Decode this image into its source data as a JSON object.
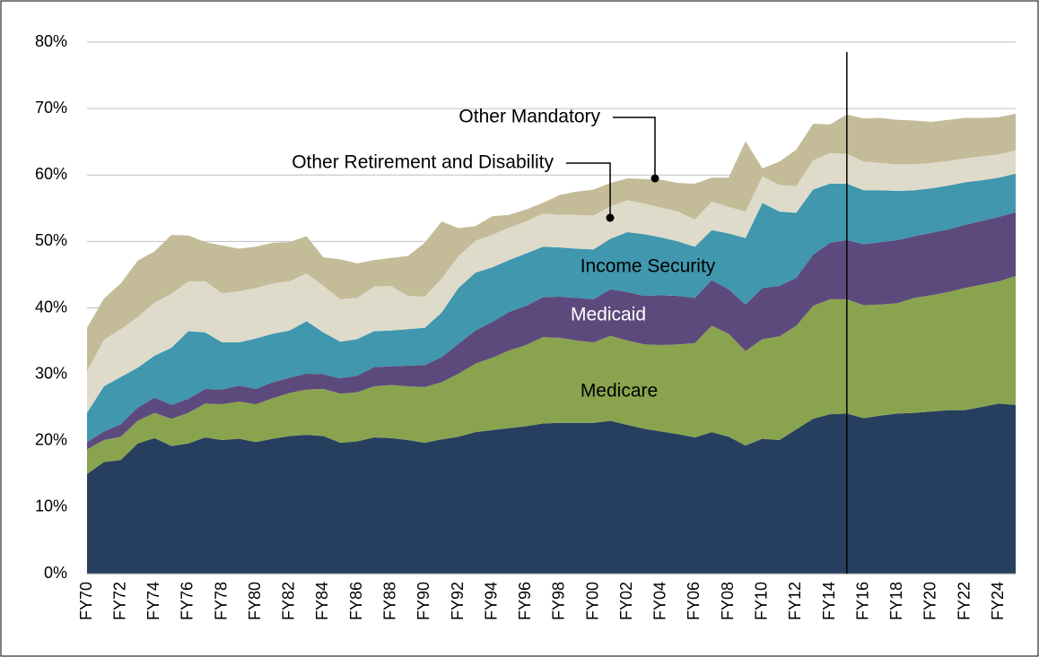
{
  "chart_data": {
    "type": "stacked_area",
    "categories": [
      "FY70",
      null,
      "FY72",
      null,
      "FY74",
      null,
      "FY76",
      null,
      "FY78",
      null,
      "FY80",
      null,
      "FY82",
      null,
      "FY84",
      null,
      "FY86",
      null,
      "FY88",
      null,
      "FY90",
      null,
      "FY92",
      null,
      "FY94",
      null,
      "FY96",
      null,
      "FY98",
      null,
      "FY00",
      null,
      "FY02",
      null,
      "FY04",
      null,
      "FY06",
      null,
      "FY08",
      null,
      "FY10",
      null,
      "FY12",
      null,
      "FY14",
      null,
      "FY16",
      null,
      "FY18",
      null,
      "FY20",
      null,
      "FY22",
      null,
      "FY24",
      null
    ],
    "series": [
      {
        "color": "#263f5f",
        "values": [
          15.0,
          16.8,
          17.1,
          19.6,
          20.4,
          19.2,
          19.6,
          20.5,
          20.1,
          20.3,
          19.8,
          20.3,
          20.7,
          20.9,
          20.7,
          19.7,
          19.9,
          20.5,
          20.4,
          20.1,
          19.7,
          20.2,
          20.6,
          21.3,
          21.6,
          21.9,
          22.2,
          22.6,
          22.7,
          22.7,
          22.7,
          23.0,
          22.4,
          21.8,
          21.4,
          21.0,
          20.5,
          21.3,
          20.6,
          19.3,
          20.3,
          20.1,
          21.7,
          23.3,
          24.0,
          24.1,
          23.4,
          23.8,
          24.1,
          24.2,
          24.4,
          24.6,
          24.6,
          25.1,
          25.6,
          25.4
        ]
      },
      {
        "name": "Medicare",
        "color": "#8aa34f",
        "values": [
          3.7,
          3.3,
          3.5,
          3.4,
          3.8,
          4.1,
          4.6,
          5.1,
          5.4,
          5.6,
          5.7,
          6.1,
          6.5,
          6.8,
          7.1,
          7.4,
          7.4,
          7.7,
          8.0,
          8.1,
          8.4,
          8.6,
          9.5,
          10.3,
          10.9,
          11.7,
          12.2,
          13.0,
          12.8,
          12.4,
          12.1,
          12.8,
          12.7,
          12.7,
          13.0,
          13.5,
          14.2,
          16.0,
          15.5,
          14.2,
          15.0,
          15.6,
          15.6,
          17.0,
          17.3,
          17.2,
          17.0,
          16.7,
          16.6,
          17.3,
          17.5,
          17.8,
          18.4,
          18.4,
          18.4,
          19.4
        ]
      },
      {
        "name": "Medicaid",
        "color": "#5d4a7d",
        "values": [
          1.1,
          1.3,
          1.9,
          2.0,
          2.3,
          2.1,
          2.1,
          2.2,
          2.2,
          2.4,
          2.3,
          2.4,
          2.3,
          2.4,
          2.2,
          2.3,
          2.5,
          2.9,
          2.8,
          3.1,
          3.3,
          3.8,
          4.5,
          5.0,
          5.4,
          5.8,
          5.9,
          6.0,
          6.2,
          6.4,
          6.5,
          7.0,
          7.3,
          7.3,
          7.5,
          7.3,
          6.8,
          6.9,
          6.7,
          7.0,
          7.7,
          7.6,
          7.2,
          7.7,
          8.5,
          8.9,
          9.2,
          9.4,
          9.5,
          9.3,
          9.4,
          9.4,
          9.5,
          9.6,
          9.7,
          9.6
        ]
      },
      {
        "name": "Income Security",
        "color": "#4097ae",
        "values": [
          4.4,
          6.8,
          7.1,
          6.0,
          6.3,
          8.6,
          10.2,
          8.5,
          7.1,
          6.5,
          7.6,
          7.3,
          7.1,
          7.9,
          6.3,
          5.5,
          5.5,
          5.4,
          5.4,
          5.5,
          5.6,
          6.7,
          8.4,
          8.7,
          8.2,
          7.8,
          7.9,
          7.6,
          7.4,
          7.4,
          7.5,
          7.6,
          9.0,
          9.3,
          8.7,
          8.2,
          7.7,
          7.5,
          8.4,
          10.0,
          12.8,
          11.2,
          9.8,
          9.8,
          8.9,
          8.5,
          8.1,
          7.8,
          7.4,
          6.9,
          6.7,
          6.6,
          6.4,
          6.1,
          5.9,
          5.8
        ]
      },
      {
        "name": "Other Retirement and Disability",
        "color": "#dedbcb",
        "values": [
          6.3,
          7.0,
          7.2,
          7.6,
          8.0,
          8.1,
          7.5,
          7.7,
          7.4,
          7.7,
          7.6,
          7.6,
          7.4,
          7.2,
          7.0,
          6.4,
          6.2,
          6.7,
          6.7,
          5.0,
          4.7,
          5.1,
          4.8,
          4.8,
          4.9,
          4.9,
          4.8,
          5.0,
          4.9,
          5.1,
          5.1,
          4.9,
          4.8,
          4.6,
          4.5,
          4.5,
          4.1,
          4.3,
          4.0,
          4.0,
          4.0,
          4.0,
          4.0,
          4.4,
          4.6,
          4.5,
          4.3,
          4.1,
          4.0,
          3.9,
          3.8,
          3.7,
          3.6,
          3.6,
          3.5,
          3.5
        ]
      },
      {
        "name": "Other Mandatory",
        "color": "#c4bb98",
        "values": [
          6.5,
          6.2,
          6.9,
          8.5,
          7.7,
          8.9,
          6.9,
          5.9,
          7.2,
          6.4,
          6.2,
          6.1,
          5.9,
          5.6,
          4.3,
          6.0,
          5.2,
          4.0,
          4.2,
          6.0,
          8.1,
          8.6,
          4.2,
          2.2,
          2.8,
          1.9,
          1.8,
          1.6,
          3.0,
          3.5,
          3.9,
          3.5,
          3.3,
          3.7,
          4.2,
          4.3,
          5.4,
          3.6,
          4.4,
          10.6,
          1.2,
          3.5,
          5.5,
          5.5,
          4.3,
          5.9,
          6.5,
          6.8,
          6.7,
          6.6,
          6.2,
          6.2,
          6.1,
          5.8,
          5.6,
          5.5
        ]
      }
    ],
    "annotations": [
      "Medicare",
      "Medicaid",
      "Income Security",
      "Other Retirement and Disability",
      "Other Mandatory"
    ],
    "ylim": [
      0,
      80
    ],
    "yticks": [
      {
        "value": 0,
        "label": "0%"
      },
      {
        "value": 10,
        "label": "10%"
      },
      {
        "value": 20,
        "label": "20%"
      },
      {
        "value": 30,
        "label": "30%"
      },
      {
        "value": 40,
        "label": "40%"
      },
      {
        "value": 50,
        "label": "50%"
      },
      {
        "value": 60,
        "label": "60%"
      },
      {
        "value": 70,
        "label": "70%"
      },
      {
        "value": 80,
        "label": "80%"
      }
    ],
    "grid": true
  }
}
